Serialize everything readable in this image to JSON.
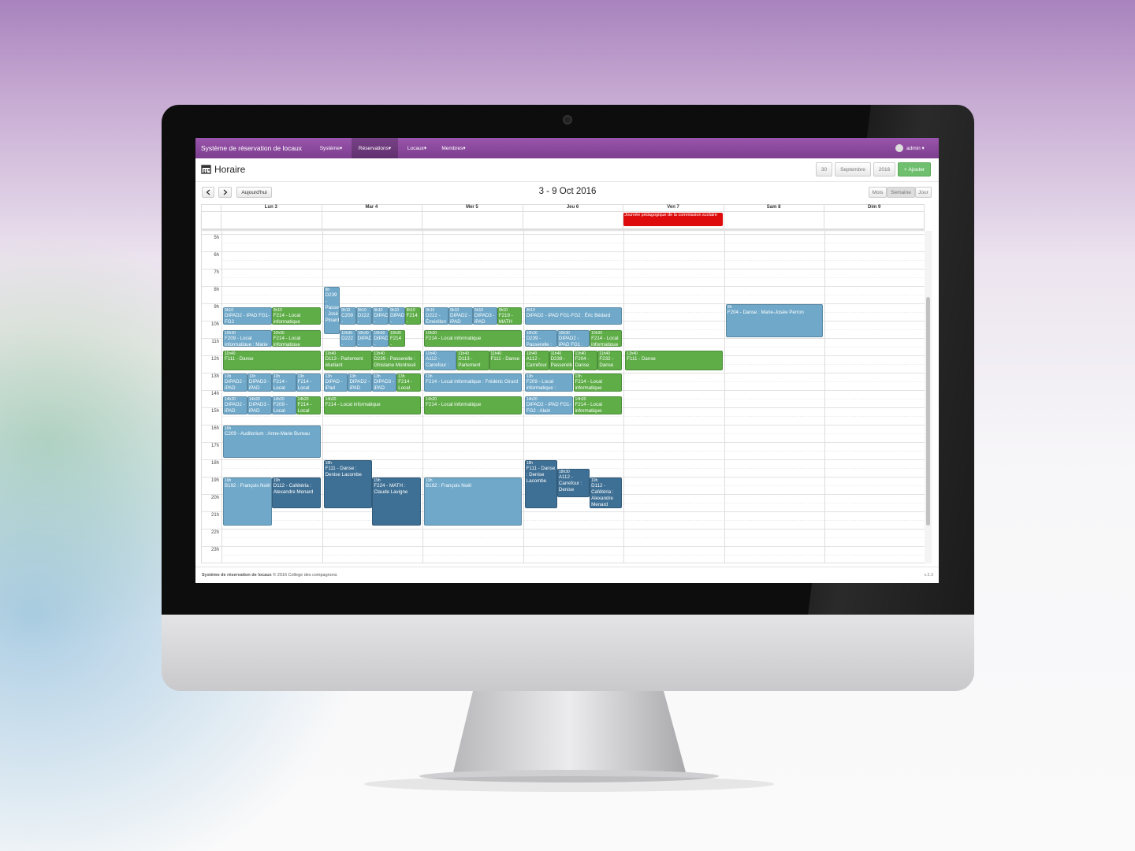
{
  "navbar": {
    "brand": "Système de réservation de locaux",
    "menu": [
      "Système",
      "Réservations",
      "Locaux",
      "Membres"
    ],
    "active_menu": 1,
    "user": "admin"
  },
  "header": {
    "title": "Horaire",
    "day": "30",
    "month": "Septembre",
    "year": "2016",
    "add": "Ajouter"
  },
  "toolbar": {
    "today": "Aujourd'hui",
    "range": "3 - 9 Oct 2016",
    "views": [
      "Mois",
      "Semaine",
      "Jour"
    ],
    "active_view": 1
  },
  "hours": [
    "5h",
    "6h",
    "7h",
    "8h",
    "9h",
    "10h",
    "11h",
    "12h",
    "13h",
    "14h",
    "15h",
    "16h",
    "17h",
    "18h",
    "19h",
    "20h",
    "21h",
    "22h",
    "23h"
  ],
  "days": [
    {
      "label": "Lun 3",
      "events": [
        {
          "time": "9h10",
          "end": 10.25,
          "color": "#6fa8c9",
          "title": "DIPAD2 - IPAD FG1-FG2"
        },
        {
          "time": "9h10",
          "end": 10.25,
          "color": "#5ead47",
          "title": "F214 - Local informatique"
        },
        {
          "time": "10h30",
          "end": 11.5,
          "color": "#6fa8c9",
          "title": "F209 - Local informatique : Marie Croteau"
        },
        {
          "time": "10h30",
          "end": 11.5,
          "color": "#5ead47",
          "title": "F214 - Local informatique"
        },
        {
          "time": "11h40",
          "end": 12.85,
          "color": "#5ead47",
          "title": "F111 - Danse"
        },
        {
          "time": "13h",
          "end": 14.1,
          "color": "#6fa8c9",
          "title": "DIPAD2 - iPAD FG1-FG2 : FG34,5"
        },
        {
          "time": "13h",
          "end": 14.1,
          "color": "#6fa8c9",
          "title": "DIPAD3 - iPAD FG34,5 : Hélène"
        },
        {
          "time": "13h",
          "end": 14.1,
          "color": "#6fa8c9",
          "title": "F214 - Local informatique"
        },
        {
          "time": "13h",
          "end": 14.1,
          "color": "#6fa8c9",
          "title": "F214 - Local informatique"
        },
        {
          "time": "14h20",
          "end": 15.4,
          "color": "#6fa8c9",
          "title": "DIPAD2 - iPAD FG1-FG2 : FG34,5"
        },
        {
          "time": "14h20",
          "end": 15.4,
          "color": "#6fa8c9",
          "title": "DIPAD3 - iPAD FG34,5"
        },
        {
          "time": "14h20",
          "end": 15.4,
          "color": "#6fa8c9",
          "title": "F209 - Local informatique"
        },
        {
          "time": "14h20",
          "end": 15.4,
          "color": "#5ead47",
          "title": "F214 - Local informatique"
        },
        {
          "time": "16h",
          "end": 17.9,
          "color": "#6fa8c9",
          "title": "C209 - Auditorium : Anne-Marie Bureau"
        },
        {
          "time": "19h",
          "end": 21.8,
          "color": "#6fa8c9",
          "title": "B192 : François Noël"
        },
        {
          "time": "19h",
          "end": 20.8,
          "color": "#3e6f94",
          "title": "D112 - Cafétéria : Alexandre Menard"
        }
      ]
    },
    {
      "label": "Mar 4",
      "events": [
        {
          "time": "8h",
          "end": 10.75,
          "color": "#6fa8c9",
          "title": "D239 - Passerelle : José Pinard"
        },
        {
          "time": "9h10",
          "end": 10.25,
          "color": "#6fa8c9",
          "title": "C209 - Auditorium"
        },
        {
          "time": "9h10",
          "end": 10.25,
          "color": "#6fa8c9",
          "title": "D222 - Émérillon"
        },
        {
          "time": "9h10",
          "end": 10.25,
          "color": "#6fa8c9",
          "title": "DIPAD - iPAD"
        },
        {
          "time": "9h10",
          "end": 10.25,
          "color": "#6fa8c9",
          "title": "DIPAD2 - iPAD"
        },
        {
          "time": "9h10",
          "end": 10.25,
          "color": "#5ead47",
          "title": "F214 - Local"
        },
        {
          "time": "10h30",
          "end": 11.5,
          "color": "#6fa8c9",
          "title": "D222 - Émérillon"
        },
        {
          "time": "10h30",
          "end": 11.5,
          "color": "#6fa8c9",
          "title": "DIPAD - PROTIC"
        },
        {
          "time": "10h30",
          "end": 11.5,
          "color": "#6fa8c9",
          "title": "DIPAD2 - iPAD FG1"
        },
        {
          "time": "10h30",
          "end": 11.5,
          "color": "#5ead47",
          "title": "F214 - Local"
        },
        {
          "time": "11h40",
          "end": 12.85,
          "color": "#5ead47",
          "title": "D113 - Parlement étudiant"
        },
        {
          "time": "11h40",
          "end": 12.85,
          "color": "#5ead47",
          "title": "D239 - Passerelle : Ghislaine Montreuil"
        },
        {
          "time": "13h",
          "end": 14.1,
          "color": "#6fa8c9",
          "title": "DIPAD - iPad PROTIC"
        },
        {
          "time": "13h",
          "end": 14.1,
          "color": "#6fa8c9",
          "title": "DIPAD2 - iPAD FG1-FG2"
        },
        {
          "time": "13h",
          "end": 14.1,
          "color": "#6fa8c9",
          "title": "DIPAD3 - iPAD FG34,5"
        },
        {
          "time": "13h",
          "end": 14.1,
          "color": "#5ead47",
          "title": "F214 - Local"
        },
        {
          "time": "14h20",
          "end": 15.4,
          "color": "#5ead47",
          "title": "F214 - Local informatique"
        },
        {
          "time": "18h",
          "end": 20.8,
          "color": "#3e6f94",
          "title": "F111 - Danse : Denise Lacombe"
        },
        {
          "time": "19h",
          "end": 21.8,
          "color": "#3e6f94",
          "title": "F224 - MATH : Claude Lavigne"
        }
      ]
    },
    {
      "label": "Mer 5",
      "events": [
        {
          "time": "9h10",
          "end": 10.25,
          "color": "#6fa8c9",
          "title": "D222 - Émérillon : Julie Auger"
        },
        {
          "time": "9h10",
          "end": 10.25,
          "color": "#6fa8c9",
          "title": "DIPAD2 - iPAD FG1-FG2"
        },
        {
          "time": "9h10",
          "end": 10.25,
          "color": "#6fa8c9",
          "title": "DIPAD3 - iPAD FG34,5"
        },
        {
          "time": "9h10",
          "end": 10.25,
          "color": "#5ead47",
          "title": "F219 - MATH"
        },
        {
          "time": "10h30",
          "end": 11.5,
          "color": "#5ead47",
          "title": "F214 - Local informatique"
        },
        {
          "time": "11h40",
          "end": 12.85,
          "color": "#6fa8c9",
          "title": "A112 - Carrefour : Nadeau"
        },
        {
          "time": "11h40",
          "end": 12.85,
          "color": "#5ead47",
          "title": "D113 - Parlement étudiant"
        },
        {
          "time": "11h40",
          "end": 12.85,
          "color": "#5ead47",
          "title": "F111 - Danse"
        },
        {
          "time": "13h",
          "end": 14.1,
          "color": "#6fa8c9",
          "title": "F214 - Local informatique : Frédéric Girard"
        },
        {
          "time": "14h20",
          "end": 15.4,
          "color": "#5ead47",
          "title": "F214 - Local informatique"
        },
        {
          "time": "19h",
          "end": 21.8,
          "color": "#6fa8c9",
          "title": "B192 : François Noël"
        }
      ]
    },
    {
      "label": "Jeu 6",
      "events": [
        {
          "time": "9h10",
          "end": 10.25,
          "color": "#6fa8c9",
          "title": "DIPAD2 - iPAD FG1-FG2 : Éric Bédard"
        },
        {
          "time": "10h30",
          "end": 11.5,
          "color": "#6fa8c9",
          "title": "D239 - Passerelle : Auger"
        },
        {
          "time": "10h30",
          "end": 11.5,
          "color": "#6fa8c9",
          "title": "DIPAD2 - iPAD FG1 : Éric Bédard"
        },
        {
          "time": "10h30",
          "end": 11.5,
          "color": "#5ead47",
          "title": "F214 - Local informatique"
        },
        {
          "time": "11h40",
          "end": 12.85,
          "color": "#5ead47",
          "title": "A112 - Carrefour"
        },
        {
          "time": "11h40",
          "end": 12.85,
          "color": "#5ead47",
          "title": "D239 - Passerelle"
        },
        {
          "time": "11h40",
          "end": 12.85,
          "color": "#5ead47",
          "title": "F204 - Danse"
        },
        {
          "time": "11h40",
          "end": 12.85,
          "color": "#5ead47",
          "title": "F232 - Danse"
        },
        {
          "time": "13h",
          "end": 14.1,
          "color": "#6fa8c9",
          "title": "F209 - Local informatique : Lachance"
        },
        {
          "time": "13h",
          "end": 14.1,
          "color": "#5ead47",
          "title": "F214 - Local informatique"
        },
        {
          "time": "14h20",
          "end": 15.4,
          "color": "#6fa8c9",
          "title": "DIPAD2 - iPAD FG1-FG2 : Alain"
        },
        {
          "time": "14h20",
          "end": 15.4,
          "color": "#5ead47",
          "title": "F214 - Local informatique"
        },
        {
          "time": "18h",
          "end": 20.8,
          "color": "#3e6f94",
          "title": "F111 - Danse : Denise Lacombe"
        },
        {
          "time": "18h30",
          "end": 20.2,
          "color": "#3e6f94",
          "title": "A112 - Carrefour : Denise"
        },
        {
          "time": "19h",
          "end": 20.8,
          "color": "#3e6f94",
          "title": "D112 - Cafétéria : Alexandre Menard"
        }
      ]
    },
    {
      "label": "Ven 7",
      "all_day": {
        "title": "Journée pédagogique de la commission scolaire",
        "color": "#dd0b0b"
      },
      "events": [
        {
          "time": "11h40",
          "end": 12.85,
          "color": "#5ead47",
          "title": "F111 - Danse"
        }
      ]
    },
    {
      "label": "Sam 8",
      "events": [
        {
          "time": "9h",
          "end": 10.95,
          "color": "#6fa8c9",
          "title": "F204 - Danse : Marie-Josée Perron"
        }
      ]
    },
    {
      "label": "Dim 9",
      "events": []
    }
  ],
  "footer": {
    "brand": "Système de réservation de locaux",
    "copyright": "© 2016 College des compagnons",
    "version": "v.3.3"
  }
}
